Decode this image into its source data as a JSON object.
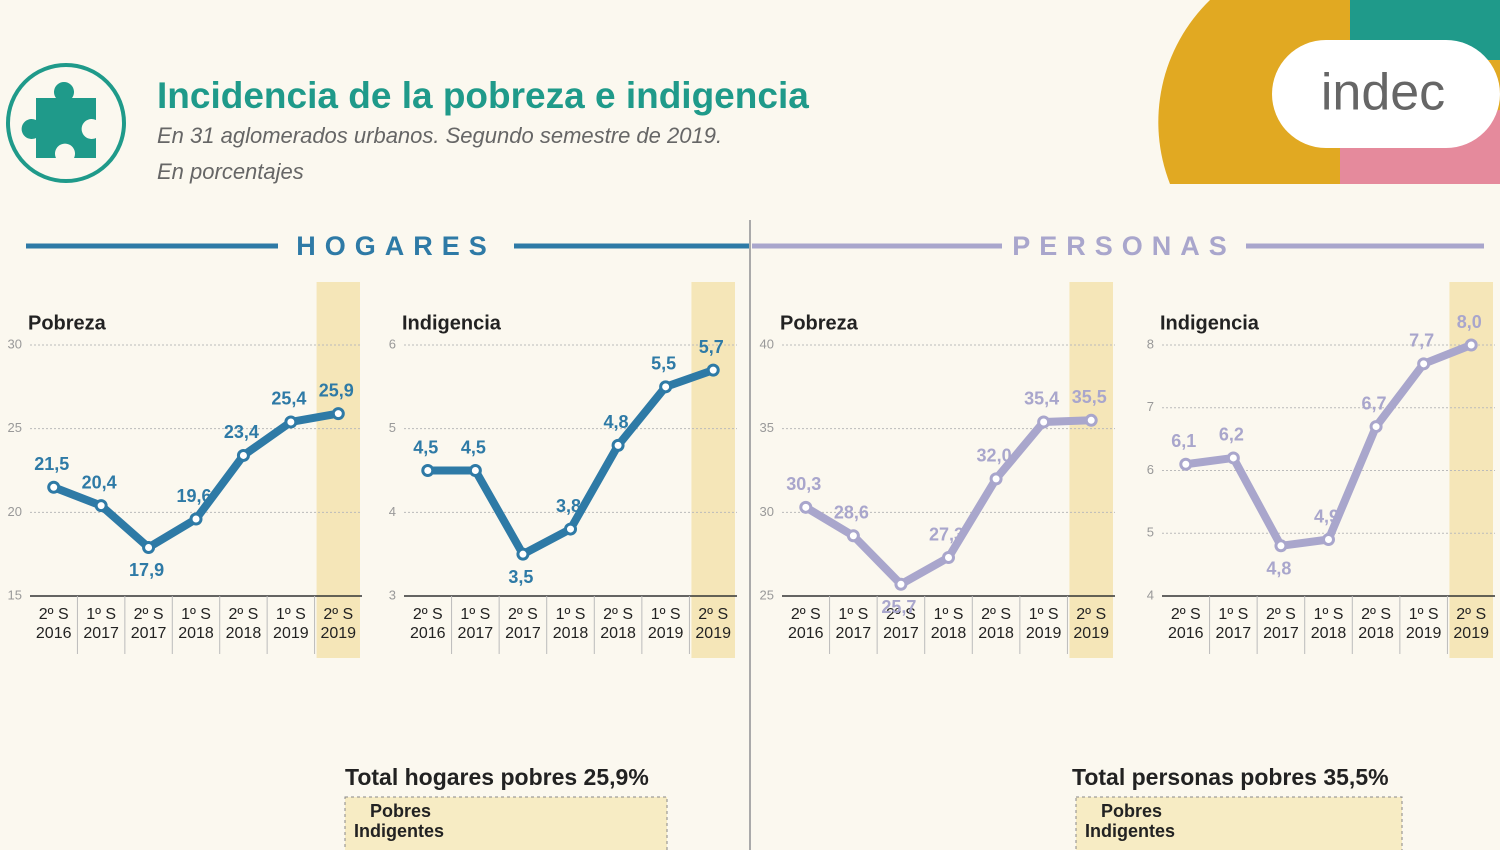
{
  "header": {
    "title": "Incidencia de la pobreza e indigencia",
    "subtitle": "En 31 aglomerados urbanos. Segundo semestre de 2019.",
    "note": "En porcentajes",
    "logo": "indec"
  },
  "sections": [
    "HOGARES",
    "PERSONAS"
  ],
  "totals": [
    {
      "title": "Total hogares pobres 25,9%",
      "box": [
        "Pobres",
        "Indigentes"
      ]
    },
    {
      "title": "Total personas pobres 35,5%",
      "box": [
        "Pobres",
        "Indigentes"
      ]
    }
  ],
  "chart_data": [
    {
      "type": "line",
      "title": "Pobreza",
      "color": "#2e7aa6",
      "categories": [
        [
          "2º S",
          "2016"
        ],
        [
          "1º S",
          "2017"
        ],
        [
          "2º S",
          "2017"
        ],
        [
          "1º S",
          "2018"
        ],
        [
          "2º S",
          "2018"
        ],
        [
          "1º S",
          "2019"
        ],
        [
          "2º S",
          "2019"
        ]
      ],
      "values": [
        21.5,
        20.4,
        17.9,
        19.6,
        23.4,
        25.4,
        25.9
      ],
      "value_labels": [
        "21,5",
        "20,4",
        "17,9",
        "19,6",
        "23,4",
        "25,4",
        "25,9"
      ],
      "ylim": [
        15,
        30
      ],
      "yticks": [
        15,
        20,
        25,
        30
      ],
      "grid": true
    },
    {
      "type": "line",
      "title": "Indigencia",
      "color": "#2e7aa6",
      "categories": [
        [
          "2º S",
          "2016"
        ],
        [
          "1º S",
          "2017"
        ],
        [
          "2º S",
          "2017"
        ],
        [
          "1º S",
          "2018"
        ],
        [
          "2º S",
          "2018"
        ],
        [
          "1º S",
          "2019"
        ],
        [
          "2º S",
          "2019"
        ]
      ],
      "values": [
        4.5,
        4.5,
        3.5,
        3.8,
        4.8,
        5.5,
        5.7
      ],
      "value_labels": [
        "4,5",
        "4,5",
        "3,5",
        "3,8",
        "4,8",
        "5,5",
        "5,7"
      ],
      "ylim": [
        3,
        6
      ],
      "yticks": [
        3,
        4,
        5,
        6
      ],
      "grid": true
    },
    {
      "type": "line",
      "title": "Pobreza",
      "color": "#a9a6cc",
      "categories": [
        [
          "2º S",
          "2016"
        ],
        [
          "1º S",
          "2017"
        ],
        [
          "2º S",
          "2017"
        ],
        [
          "1º S",
          "2018"
        ],
        [
          "2º S",
          "2018"
        ],
        [
          "1º S",
          "2019"
        ],
        [
          "2º S",
          "2019"
        ]
      ],
      "values": [
        30.3,
        28.6,
        25.7,
        27.3,
        32.0,
        35.4,
        35.5
      ],
      "value_labels": [
        "30,3",
        "28,6",
        "25,7",
        "27,3",
        "32,0",
        "35,4",
        "35,5"
      ],
      "ylim": [
        25,
        40
      ],
      "yticks": [
        25,
        30,
        35,
        40
      ],
      "grid": true
    },
    {
      "type": "line",
      "title": "Indigencia",
      "color": "#a9a6cc",
      "categories": [
        [
          "2º S",
          "2016"
        ],
        [
          "1º S",
          "2017"
        ],
        [
          "2º S",
          "2017"
        ],
        [
          "1º S",
          "2018"
        ],
        [
          "2º S",
          "2018"
        ],
        [
          "1º S",
          "2019"
        ],
        [
          "2º S",
          "2019"
        ]
      ],
      "values": [
        6.1,
        6.2,
        4.8,
        4.9,
        6.7,
        7.7,
        8.0
      ],
      "value_labels": [
        "6,1",
        "6,2",
        "4,8",
        "4,9",
        "6,7",
        "7,7",
        "8,0"
      ],
      "ylim": [
        4,
        8
      ],
      "yticks": [
        4,
        5,
        6,
        7,
        8
      ],
      "grid": true
    }
  ]
}
